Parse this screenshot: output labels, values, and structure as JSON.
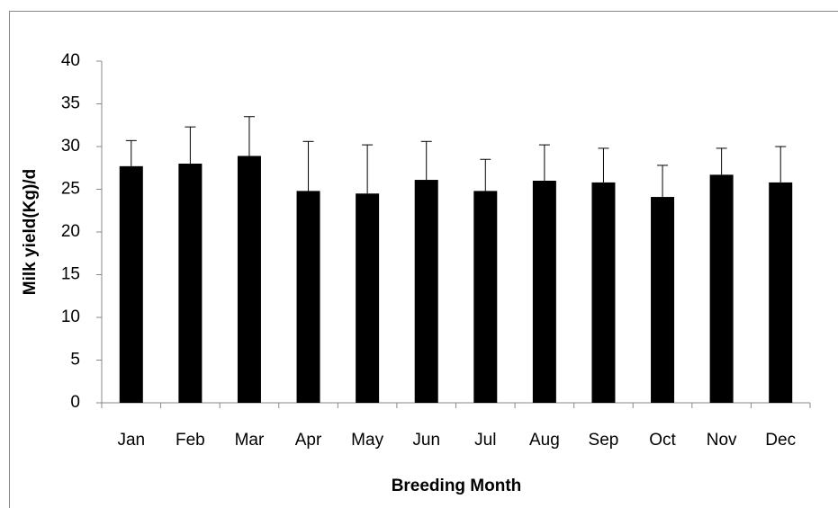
{
  "chart_data": {
    "type": "bar",
    "x_label": "Breeding Month",
    "y_label": "Milk yield(Kg)/d",
    "categories": [
      "Jan",
      "Feb",
      "Mar",
      "Apr",
      "May",
      "Jun",
      "Jul",
      "Aug",
      "Sep",
      "Oct",
      "Nov",
      "Dec"
    ],
    "values": [
      27.7,
      28.0,
      28.9,
      24.8,
      24.5,
      26.1,
      24.8,
      26.0,
      25.8,
      24.1,
      26.7,
      25.8
    ],
    "errors": [
      3.0,
      4.3,
      4.6,
      5.8,
      5.7,
      4.5,
      3.7,
      4.2,
      4.0,
      3.7,
      3.1,
      4.2
    ],
    "color": "#000000",
    "ylim": [
      0,
      40
    ],
    "yticks": [
      0,
      5,
      10,
      15,
      20,
      25,
      30,
      35,
      40
    ],
    "grid": false
  }
}
